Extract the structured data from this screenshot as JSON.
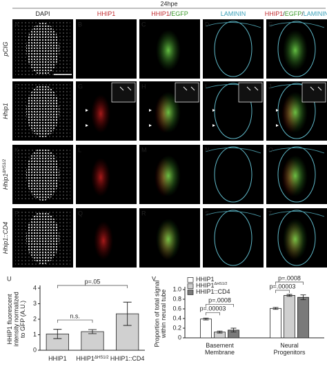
{
  "figure": {
    "time_label": "24hpe",
    "columns": [
      [
        "DAPI"
      ],
      [
        "HHIP1"
      ],
      [
        "HHIP1",
        "/",
        "EGFP"
      ],
      [
        "LAMININ"
      ],
      [
        "HHIP1",
        "/",
        "EGFP",
        "/",
        "LAMININ"
      ]
    ],
    "rows": [
      {
        "label": [
          "pCIG"
        ],
        "panels": [
          "A",
          "B",
          "C",
          "D",
          "E"
        ]
      },
      {
        "label": [
          "Hhip1"
        ],
        "panels": [
          "F",
          "G",
          "H",
          "I",
          "J"
        ]
      },
      {
        "label": [
          "Hhip1",
          "ΔHS1/2"
        ],
        "panels": [
          "K",
          "L",
          "M",
          "N",
          "O"
        ]
      },
      {
        "label": [
          "Hhip1::CD4"
        ],
        "panels": [
          "P",
          "Q",
          "R",
          "S",
          "T"
        ]
      }
    ]
  },
  "chart_data": [
    {
      "type": "bar",
      "panel": "U",
      "ylabel": [
        "HHIP1 fluorescent",
        "intensity normalized",
        "to GFP (A.U.)"
      ],
      "categories": [
        [
          "HHIP1"
        ],
        [
          "HHIP1",
          "ΔHS1/2"
        ],
        [
          "HHIP1::CD4"
        ]
      ],
      "values": [
        1.05,
        1.2,
        2.35
      ],
      "errors": [
        0.3,
        0.13,
        0.75
      ],
      "color": "#d0d0d0",
      "ylim": [
        0,
        4
      ],
      "yticks": [
        0,
        1,
        2,
        3,
        4
      ],
      "annotations": [
        "n.s.",
        "p=.05"
      ]
    },
    {
      "type": "grouped_bar",
      "panel": "V",
      "ylabel": [
        "Proportion of total signal",
        "within neural tube"
      ],
      "categories": [
        "Basement Membrane",
        "Neural Progenitors"
      ],
      "series": [
        {
          "name": "HHIP1",
          "color": "#ffffff",
          "values": [
            0.39,
            0.61
          ],
          "errors": [
            0.02,
            0.02
          ]
        },
        {
          "name": "HHIP1",
          "name_sup": "ΔHS1/2",
          "color": "#cfcfcf",
          "values": [
            0.12,
            0.88
          ],
          "errors": [
            0.02,
            0.02
          ]
        },
        {
          "name": "HHIP1::CD4",
          "color": "#7a7a7a",
          "values": [
            0.16,
            0.84
          ],
          "errors": [
            0.04,
            0.05
          ]
        }
      ],
      "ylim": [
        0,
        1.0
      ],
      "yticks": [
        0,
        0.2,
        0.4,
        0.6,
        {
          "value": 0.8,
          "label": "0.8"
        },
        {
          "value": 1.0,
          "label": "1.0"
        }
      ],
      "legend": "top-left",
      "annotations": [
        "p=.0008",
        "p=.00003",
        "p=.0008",
        "p=.00003"
      ]
    }
  ]
}
